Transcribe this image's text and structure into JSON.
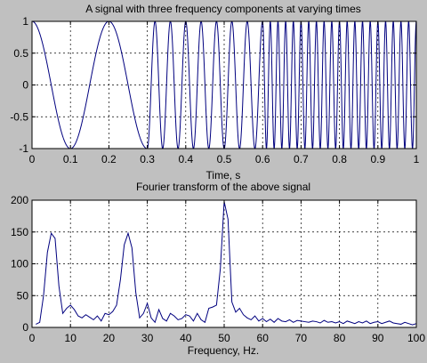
{
  "figure_background": "#c0c0c0",
  "axes_background": "#ffffff",
  "line_color": "#00007f",
  "grid_color": "#000000",
  "chart_data": [
    {
      "type": "line",
      "title": "A signal with three frequency components at varying times",
      "xlabel": "Time, s",
      "ylabel": "",
      "xlim": [
        0,
        1
      ],
      "ylim": [
        -1,
        1
      ],
      "grid": true,
      "xticks": [
        0,
        0.1,
        0.2,
        0.3,
        0.4,
        0.5,
        0.6,
        0.7,
        0.8,
        0.9,
        1
      ],
      "xtick_labels": [
        "0",
        "0.1",
        "0.2",
        "0.3",
        "0.4",
        "0.5",
        "0.6",
        "0.7",
        "0.8",
        "0.9",
        "1"
      ],
      "yticks": [
        -1,
        -0.5,
        0,
        0.5,
        1
      ],
      "ytick_labels": [
        "-1",
        "-0.5",
        "0",
        "0.5",
        "1"
      ],
      "signal": {
        "kind": "piecewise cosine",
        "segments": [
          {
            "t_start": 0,
            "t_end": 0.3,
            "frequency_hz": 5
          },
          {
            "t_start": 0.3,
            "t_end": 0.6,
            "frequency_hz": 25
          },
          {
            "t_start": 0.6,
            "t_end": 1.0,
            "frequency_hz": 50
          }
        ]
      }
    },
    {
      "type": "line",
      "title": "Fourier transform of the above signal",
      "xlabel": "Frequency, Hz.",
      "ylabel": "",
      "xlim": [
        0,
        100
      ],
      "ylim": [
        0,
        200
      ],
      "grid": true,
      "xticks": [
        0,
        10,
        20,
        30,
        40,
        50,
        60,
        70,
        80,
        90,
        100
      ],
      "xtick_labels": [
        "0",
        "10",
        "20",
        "30",
        "40",
        "50",
        "60",
        "70",
        "80",
        "90",
        "100"
      ],
      "yticks": [
        0,
        50,
        100,
        150,
        200
      ],
      "ytick_labels": [
        "0",
        "50",
        "100",
        "150",
        "200"
      ],
      "x": [
        1,
        2,
        3,
        4,
        5,
        6,
        7,
        8,
        9,
        10,
        11,
        12,
        13,
        14,
        15,
        16,
        17,
        18,
        19,
        20,
        21,
        22,
        23,
        24,
        25,
        26,
        27,
        28,
        29,
        30,
        31,
        32,
        33,
        34,
        35,
        36,
        37,
        38,
        39,
        40,
        41,
        42,
        43,
        44,
        45,
        46,
        47,
        48,
        49,
        50,
        51,
        52,
        53,
        54,
        55,
        56,
        57,
        58,
        59,
        60,
        61,
        62,
        63,
        64,
        65,
        66,
        67,
        68,
        69,
        70,
        71,
        72,
        73,
        74,
        75,
        76,
        77,
        78,
        79,
        80,
        81,
        82,
        83,
        84,
        85,
        86,
        87,
        88,
        89,
        90,
        91,
        92,
        93,
        94,
        95,
        96,
        97,
        98,
        99,
        100
      ],
      "y": [
        5,
        8,
        50,
        118,
        148,
        140,
        65,
        22,
        30,
        35,
        28,
        18,
        15,
        20,
        16,
        12,
        18,
        10,
        22,
        20,
        25,
        35,
        75,
        130,
        148,
        125,
        55,
        15,
        22,
        38,
        15,
        8,
        28,
        14,
        10,
        22,
        18,
        12,
        14,
        20,
        18,
        10,
        22,
        12,
        8,
        30,
        32,
        35,
        92,
        198,
        170,
        40,
        24,
        30,
        20,
        15,
        12,
        18,
        10,
        14,
        9,
        13,
        8,
        14,
        10,
        9,
        12,
        8,
        11,
        10,
        9,
        8,
        10,
        9,
        7,
        11,
        8,
        9,
        7,
        9,
        6,
        10,
        8,
        6,
        9,
        7,
        10,
        6,
        8,
        9,
        6,
        8,
        10,
        7,
        6,
        5,
        8,
        6,
        4,
        6
      ]
    }
  ]
}
